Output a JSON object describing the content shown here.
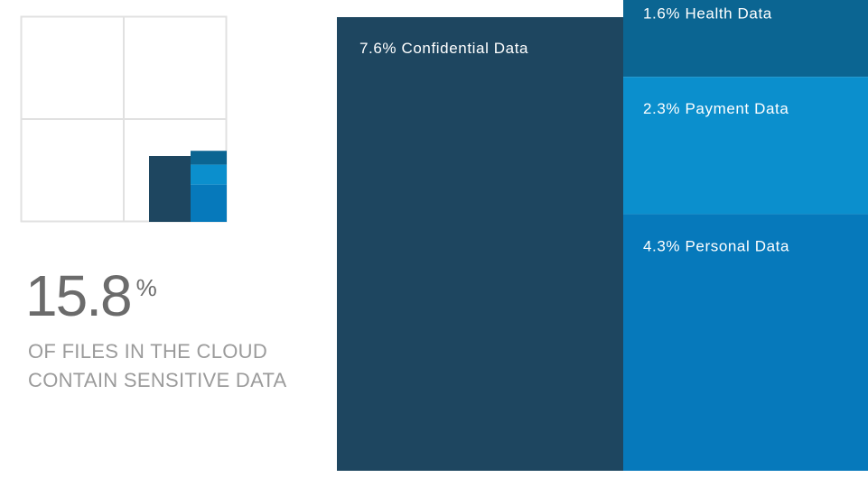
{
  "headline": {
    "value": "15.8",
    "unit": "%",
    "caption_line1": "OF FILES IN THE CLOUD",
    "caption_line2": "CONTAIN SENSITIVE DATA"
  },
  "colors": {
    "confidential": "#1e4660",
    "health": "#0b6592",
    "payment": "#0b8fcd",
    "personal": "#0679bb",
    "grid": "#e1e1e1"
  },
  "chart_data": {
    "type": "treemap",
    "total": 15.8,
    "unit": "%",
    "items": [
      {
        "key": "confidential",
        "label": "7.6% Confidential Data",
        "value": 7.6
      },
      {
        "key": "health",
        "label": "1.6% Health Data",
        "value": 1.6
      },
      {
        "key": "payment",
        "label": "2.3% Payment Data",
        "value": 2.3
      },
      {
        "key": "personal",
        "label": "4.3% Personal Data",
        "value": 4.3
      }
    ]
  }
}
